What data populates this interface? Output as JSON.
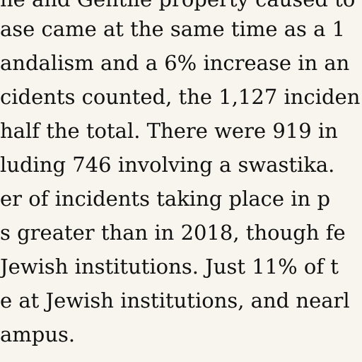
{
  "document": {
    "lines": [
      "he and Gentile property caused to",
      "ase came at the same time as a 1",
      "andalism and a 6% increase in an",
      "cidents counted, the 1,127 inciden",
      " half the total. There were 919 in",
      "luding 746 involving a swastika.",
      "er of incidents taking place in p",
      "s greater than in 2018, though fe",
      " Jewish institutions. Just 11% of t",
      "e at Jewish institutions, and nearl",
      "ampus."
    ]
  }
}
